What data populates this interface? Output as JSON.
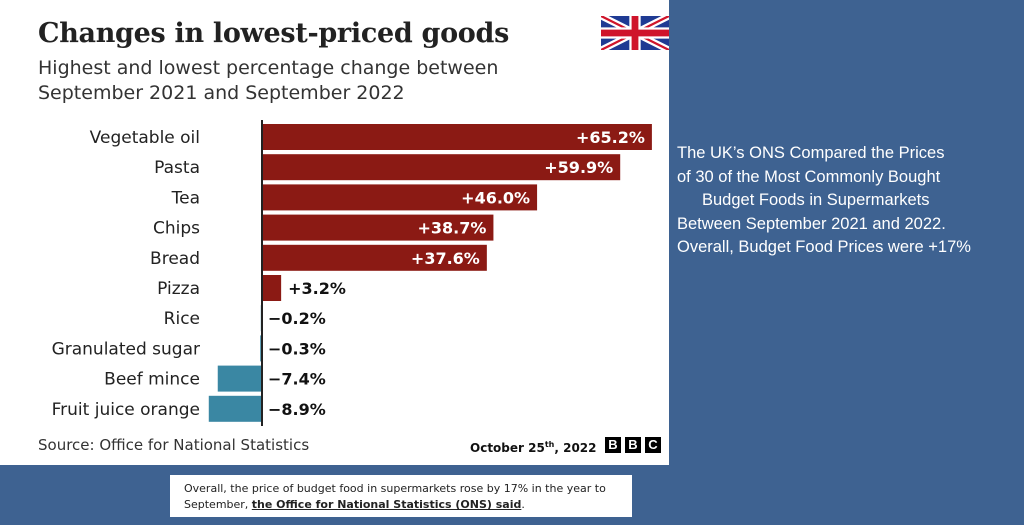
{
  "chart_data": {
    "type": "bar",
    "orientation": "horizontal",
    "title": "Changes in lowest-priced goods",
    "subtitle": "Highest and lowest percentage change between September 2021 and September 2022",
    "categories": [
      "Vegetable oil",
      "Pasta",
      "Tea",
      "Chips",
      "Bread",
      "Pizza",
      "Rice",
      "Granulated sugar",
      "Beef mince",
      "Fruit juice orange"
    ],
    "values": [
      65.2,
      59.9,
      46.0,
      38.7,
      37.6,
      3.2,
      -0.2,
      -0.3,
      -7.4,
      -8.9
    ],
    "value_labels": [
      "+65.2%",
      "+59.9%",
      "+46.0%",
      "+38.7%",
      "+37.6%",
      "+3.2%",
      "−0.2%",
      "−0.3%",
      "−7.4%",
      "−8.9%"
    ],
    "xlim": [
      -10,
      66
    ],
    "xlabel": "",
    "ylabel": "",
    "grid": false,
    "colors": {
      "positive": "#8b1a14",
      "negative": "#3a87a3",
      "axis": "#222222",
      "label": "#222222"
    }
  },
  "footer": {
    "source": "Source: Office for National Statistics",
    "date_main": "October 25",
    "date_sup": "th",
    "date_tail": ", 2022",
    "logo_letters": [
      "B",
      "B",
      "C"
    ]
  },
  "side_note": {
    "line1": "The UK’s ONS Compared the Prices",
    "line2": "of 30 of the Most Commonly Bought",
    "line3": "Budget Foods in Supermarkets",
    "line4": "Between September 2021 and 2022.",
    "line5": "Overall, Budget Food Prices were +17%"
  },
  "quote": {
    "text_before": "Overall, the price of budget food in supermarkets rose by 17% in the year to September, ",
    "bold_text": "the Office for National Statistics (ONS) said",
    "text_after": "."
  },
  "colors": {
    "background": "#3e6291",
    "panel": "#ffffff",
    "flag_blue": "#1f3a93",
    "flag_red": "#cf142b"
  }
}
